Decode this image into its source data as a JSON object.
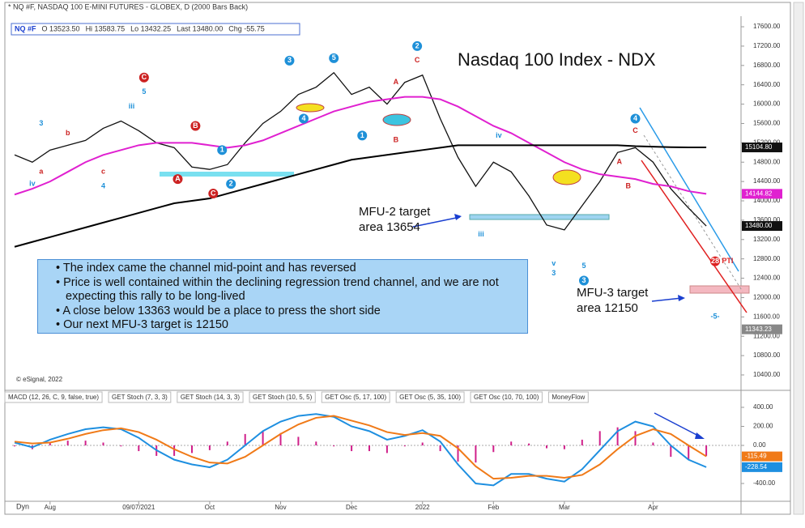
{
  "chart_data": {
    "type": "line",
    "header": "* NQ #F, NASDAQ 100 E-MINI FUTURES - GLOBEX, D (2000 Bars Back)",
    "quote": [
      "NQ #F",
      "O 13523.50",
      "Hi 13583.75",
      "Lo 13432.25",
      "Last 13480.00",
      "Chg -55.75"
    ],
    "title": "Nasdaq 100 Index - NDX",
    "categories": [
      null,
      null,
      "Aug",
      null,
      null,
      null,
      null,
      "09/07/2021",
      null,
      null,
      null,
      "Oct",
      null,
      null,
      null,
      "Nov",
      null,
      null,
      null,
      "Dec",
      null,
      null,
      null,
      "2022",
      null,
      null,
      null,
      "Feb",
      null,
      null,
      null,
      "Mar",
      null,
      null,
      null,
      null,
      "Apr",
      null,
      null,
      null
    ],
    "series": [
      {
        "name": "Price",
        "color": "#111111",
        "values": [
          14950,
          14800,
          15050,
          15150,
          15250,
          15500,
          15650,
          15450,
          15200,
          15100,
          14700,
          14650,
          14750,
          15200,
          15600,
          15850,
          16200,
          16350,
          16650,
          16200,
          16350,
          16000,
          16450,
          16600,
          15700,
          14900,
          14300,
          14800,
          14600,
          14100,
          13500,
          13400,
          13900,
          14400,
          15000,
          15100,
          14800,
          14250,
          13850,
          13480
        ]
      },
      {
        "name": "MA50",
        "color": "#e020d0",
        "values": [
          14130,
          14250,
          14400,
          14600,
          14800,
          14950,
          15050,
          15150,
          15200,
          15200,
          15200,
          15150,
          15100,
          15150,
          15250,
          15400,
          15550,
          15700,
          15850,
          15950,
          16050,
          16100,
          16150,
          16150,
          16100,
          15950,
          15750,
          15550,
          15400,
          15200,
          15000,
          14800,
          14650,
          14550,
          14500,
          14450,
          14350,
          14300,
          14200,
          14145
        ]
      },
      {
        "name": "MA200",
        "color": "#000000",
        "values": [
          13050,
          13150,
          13250,
          13350,
          13450,
          13550,
          13650,
          13750,
          13850,
          13950,
          14000,
          14050,
          14150,
          14250,
          14350,
          14450,
          14550,
          14650,
          14750,
          14850,
          14900,
          14950,
          15000,
          15050,
          15100,
          15150,
          15150,
          15150,
          15150,
          15150,
          15150,
          15150,
          15150,
          15150,
          15150,
          15130,
          15120,
          15110,
          15105,
          15104.8
        ]
      }
    ],
    "ylim": [
      10115,
      17785
    ],
    "yticks": [
      {
        "value": 17600,
        "label": "17600.00"
      },
      {
        "value": 17200,
        "label": "17200.00"
      },
      {
        "value": 16800,
        "label": "16800.00"
      },
      {
        "value": 16400,
        "label": "16400.00"
      },
      {
        "value": 16000,
        "label": "16000.00"
      },
      {
        "value": 15600,
        "label": "15600.00"
      },
      {
        "value": 15200,
        "label": "15200.00"
      },
      {
        "value": 14800,
        "label": "14800.00"
      },
      {
        "value": 14400,
        "label": "14400.00"
      },
      {
        "value": 14000,
        "label": "14000.00"
      },
      {
        "value": 13600,
        "label": "13600.00"
      },
      {
        "value": 13200,
        "label": "13200.00"
      },
      {
        "value": 12800,
        "label": "12800.00"
      },
      {
        "value": 12400,
        "label": "12400.00"
      },
      {
        "value": 12000,
        "label": "12000.00"
      },
      {
        "value": 11600,
        "label": "11600.00"
      },
      {
        "value": 11200,
        "label": "11200.00"
      },
      {
        "value": 10800,
        "label": "10800.00"
      },
      {
        "value": 10400,
        "label": "10400.00"
      }
    ],
    "price_labels": [
      {
        "value": 15104.8,
        "label": "15104.80",
        "color": "#111111"
      },
      {
        "value": 14144.82,
        "label": "14144.82",
        "color": "#e020d0"
      },
      {
        "value": 13480,
        "label": "13480.00",
        "color": "#111111"
      },
      {
        "value": 11343.23,
        "label": "11343.23",
        "color": "#888888"
      }
    ],
    "wave_labels": [
      {
        "text": "iv",
        "x": 1,
        "y": 14350,
        "color": "#1e90d8"
      },
      {
        "text": "a",
        "x": 1.5,
        "y": 14600,
        "color": "#cc2222"
      },
      {
        "text": "3",
        "x": 1.5,
        "y": 15600,
        "color": "#1e90d8"
      },
      {
        "text": "b",
        "x": 3,
        "y": 15400,
        "color": "#cc2222"
      },
      {
        "text": "c",
        "x": 5,
        "y": 14600,
        "color": "#cc2222"
      },
      {
        "text": "4",
        "x": 5,
        "y": 14300,
        "color": "#1e90d8"
      },
      {
        "text": "iii",
        "x": 6.6,
        "y": 15950,
        "color": "#1e90d8"
      },
      {
        "text": "5",
        "x": 7.3,
        "y": 16250,
        "color": "#1e90d8"
      },
      {
        "text": "C",
        "x": 7.3,
        "y": 16550,
        "color": "#cc2222",
        "circle": true
      },
      {
        "text": "A",
        "x": 9.2,
        "y": 14450,
        "color": "#cc2222",
        "circle": true
      },
      {
        "text": "B",
        "x": 10.2,
        "y": 15550,
        "color": "#cc2222",
        "circle": true
      },
      {
        "text": "C",
        "x": 11.2,
        "y": 14150,
        "color": "#cc2222",
        "circle": true
      },
      {
        "text": "1",
        "x": 11.7,
        "y": 15050,
        "color": "#1e90d8",
        "circle": true
      },
      {
        "text": "2",
        "x": 12.2,
        "y": 14350,
        "color": "#1e90d8",
        "circle": true
      },
      {
        "text": "3",
        "x": 15.5,
        "y": 16900,
        "color": "#1e90d8",
        "circle": true
      },
      {
        "text": "4",
        "x": 16.3,
        "y": 15700,
        "color": "#1e90d8",
        "circle": true
      },
      {
        "text": "5",
        "x": 18,
        "y": 16950,
        "color": "#1e90d8",
        "circle": true
      },
      {
        "text": "1",
        "x": 19.6,
        "y": 15350,
        "color": "#1e90d8",
        "circle": true
      },
      {
        "text": "A",
        "x": 21.5,
        "y": 16450,
        "color": "#cc2222"
      },
      {
        "text": "B",
        "x": 21.5,
        "y": 15250,
        "color": "#cc2222"
      },
      {
        "text": "2",
        "x": 22.7,
        "y": 17200,
        "color": "#1e90d8",
        "circle": true
      },
      {
        "text": "C",
        "x": 22.7,
        "y": 16900,
        "color": "#cc2222"
      },
      {
        "text": "iv",
        "x": 27.3,
        "y": 15350,
        "color": "#1e90d8"
      },
      {
        "text": "iii",
        "x": 26.3,
        "y": 13300,
        "color": "#1e90d8"
      },
      {
        "text": "v",
        "x": 30.4,
        "y": 12700,
        "color": "#1e90d8"
      },
      {
        "text": "3",
        "x": 30.4,
        "y": 12500,
        "color": "#1e90d8"
      },
      {
        "text": "5",
        "x": 32.1,
        "y": 12650,
        "color": "#1e90d8"
      },
      {
        "text": "3",
        "x": 32.1,
        "y": 12350,
        "color": "#1e90d8",
        "circle": true
      },
      {
        "text": "4",
        "x": 35,
        "y": 15700,
        "color": "#1e90d8",
        "circle": true
      },
      {
        "text": "C",
        "x": 35,
        "y": 15450,
        "color": "#cc2222"
      },
      {
        "text": "A",
        "x": 34.1,
        "y": 14800,
        "color": "#cc2222"
      },
      {
        "text": "B",
        "x": 34.6,
        "y": 14300,
        "color": "#cc2222"
      },
      {
        "text": "28",
        "x": 39.5,
        "y": 12750,
        "color": "#dd2222",
        "circle": true
      },
      {
        "text": "PTI",
        "x": 40.2,
        "y": 12750,
        "color": "#dd2222"
      },
      {
        "text": "-5-",
        "x": 39.5,
        "y": 11600,
        "color": "#1e90d8"
      }
    ],
    "annotations": [
      {
        "lines": [
          "MFU-2 target",
          "area 13654"
        ]
      },
      {
        "lines": [
          "MFU-3 target",
          "area 12150"
        ]
      }
    ],
    "notes": [
      "The index came the channel mid-point and has reversed",
      "Price is well contained within the declining regression trend channel, and we are not expecting this rally to be long-lived",
      "A close below 13363 would be a place to press the short side",
      "Our next MFU-3 target is 12150"
    ],
    "copyright": "© eSignal, 2022",
    "tabs": [
      "MACD (12, 26, C, 9, false, true)",
      "GET Stoch (7, 3, 3)",
      "GET Stoch (14, 3, 3)",
      "GET Stoch (10, 5, 5)",
      "GET Osc (5, 17, 100)",
      "GET Osc (5, 35, 100)",
      "GET Osc (10, 70, 100)",
      "MoneyFlow"
    ],
    "macd": {
      "ylim": [
        -655,
        485
      ],
      "yticks": [
        {
          "value": 400,
          "label": "400.00"
        },
        {
          "value": 200,
          "label": "200.00"
        },
        {
          "value": 0,
          "label": "0.00"
        },
        {
          "value": -400,
          "label": "-400.00"
        }
      ],
      "histogram": {
        "name": "Histogram",
        "color": "#d0208a",
        "values": [
          -10,
          -40,
          30,
          50,
          50,
          30,
          -10,
          -60,
          -110,
          -110,
          -80,
          -50,
          40,
          120,
          150,
          130,
          90,
          40,
          -10,
          -60,
          -60,
          -80,
          -10,
          30,
          -60,
          -170,
          -180,
          -70,
          40,
          20,
          -30,
          -40,
          60,
          150,
          190,
          150,
          30,
          -120,
          -150,
          -113
        ]
      },
      "series": [
        {
          "name": "MACD",
          "color": "#1e8fe0",
          "values": [
            30,
            -20,
            60,
            120,
            170,
            190,
            170,
            80,
            -50,
            -150,
            -200,
            -230,
            -150,
            0,
            150,
            250,
            310,
            330,
            300,
            200,
            150,
            60,
            100,
            160,
            40,
            -200,
            -400,
            -420,
            -300,
            -300,
            -350,
            -380,
            -250,
            -50,
            150,
            250,
            200,
            0,
            -150,
            -228.54
          ],
          "value_label": "-228.54"
        },
        {
          "name": "Signal",
          "color": "#f07a18",
          "values": [
            40,
            20,
            30,
            70,
            120,
            160,
            180,
            140,
            60,
            -40,
            -120,
            -180,
            -190,
            -120,
            0,
            120,
            220,
            290,
            310,
            260,
            210,
            140,
            110,
            130,
            100,
            -30,
            -220,
            -350,
            -340,
            -320,
            -320,
            -340,
            -310,
            -200,
            -40,
            100,
            170,
            120,
            0,
            -115.49
          ],
          "value_label": "-115.49"
        }
      ]
    },
    "dyn": "Dyn"
  }
}
